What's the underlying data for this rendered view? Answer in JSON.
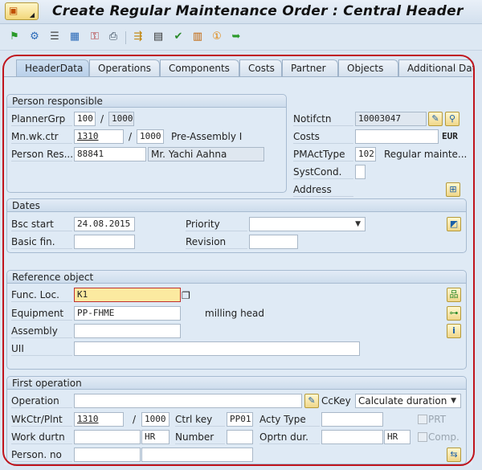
{
  "window": {
    "title": "Create Regular Maintenance Order : Central Header"
  },
  "toolbar": {
    "icons": [
      "flag-icon",
      "execute-settings-icon",
      "list-icon",
      "calculator-icon",
      "status-icon",
      "print-icon",
      "objects-icon",
      "document-icon",
      "release-icon",
      "clipboard-icon",
      "info-circle-icon",
      "forward-icon"
    ]
  },
  "tabs": [
    "HeaderData",
    "Operations",
    "Components",
    "Costs",
    "Partner",
    "Objects",
    "Additional Data"
  ],
  "person_responsible": {
    "header": "Person responsible",
    "planner_grp": {
      "label": "PlannerGrp",
      "value": "100",
      "plant": "1000"
    },
    "main_wk_ctr": {
      "label": "Mn.wk.ctr",
      "value": "1310",
      "plant": "1000",
      "desc": "Pre-Assembly I"
    },
    "person_res": {
      "label": "Person Res...",
      "value": "88841",
      "name": "Mr. Yachi Aahna"
    },
    "sep": "/"
  },
  "right": {
    "notifctn": {
      "label": "Notifctn",
      "value": "10003047"
    },
    "costs": {
      "label": "Costs",
      "value": "",
      "currency": "EUR"
    },
    "pmacttype": {
      "label": "PMActType",
      "value": "102",
      "desc": "Regular mainte..."
    },
    "systcond": {
      "label": "SystCond.",
      "value": ""
    },
    "address": {
      "label": "Address"
    }
  },
  "dates": {
    "header": "Dates",
    "bsc_start": {
      "label": "Bsc start",
      "value": "24.08.2015"
    },
    "basic_fin": {
      "label": "Basic fin.",
      "value": ""
    },
    "priority": {
      "label": "Priority",
      "value": ""
    },
    "revision": {
      "label": "Revision",
      "value": ""
    }
  },
  "reference": {
    "header": "Reference object",
    "func_loc": {
      "label": "Func. Loc.",
      "value": "K1"
    },
    "equipment": {
      "label": "Equipment",
      "value": "PP-FHME",
      "desc": "milling head"
    },
    "assembly": {
      "label": "Assembly",
      "value": ""
    },
    "uii": {
      "label": "UII",
      "value": ""
    }
  },
  "first_op": {
    "header": "First operation",
    "operation": {
      "label": "Operation",
      "value": ""
    },
    "calc_key": {
      "label": "CcKey",
      "value": "Calculate duration"
    },
    "wkctr": {
      "label": "WkCtr/Plnt",
      "value": "1310",
      "plant": "1000"
    },
    "ctrl_key": {
      "label": "Ctrl key",
      "value": "PP01"
    },
    "acty_type": {
      "label": "Acty Type",
      "value": ""
    },
    "prt": {
      "label": "PRT",
      "checked": false
    },
    "work": {
      "label": "Work durtn",
      "value": "",
      "unit": "HR"
    },
    "number": {
      "label": "Number",
      "value": ""
    },
    "oprtn_dur": {
      "label": "Oprtn dur.",
      "value": "",
      "unit": "HR"
    },
    "comp": {
      "label": "Comp.",
      "checked": false
    },
    "person_no": {
      "label": "Person. no",
      "value": "",
      "name": ""
    }
  }
}
